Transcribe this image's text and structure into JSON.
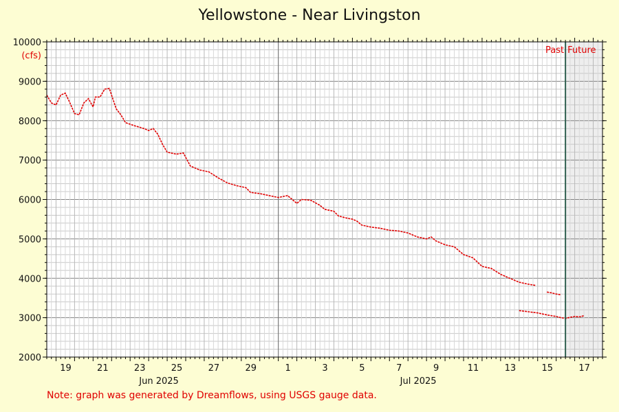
{
  "chart_data": {
    "type": "line",
    "title": "Yellowstone - Near Livingston",
    "ylabel": "(cfs)",
    "ylim": [
      2000,
      10000
    ],
    "yticks": [
      2000,
      3000,
      4000,
      5000,
      6000,
      7000,
      8000,
      9000,
      10000
    ],
    "xlim": [
      "2025-06-18T12:00",
      "2025-07-18T12:00"
    ],
    "x_tick_labels": [
      {
        "date": "2025-06-19",
        "label": "19"
      },
      {
        "date": "2025-06-21",
        "label": "21"
      },
      {
        "date": "2025-06-23",
        "label": "23"
      },
      {
        "date": "2025-06-25",
        "label": "25"
      },
      {
        "date": "2025-06-27",
        "label": "27"
      },
      {
        "date": "2025-06-29",
        "label": "29"
      },
      {
        "date": "2025-07-01",
        "label": "1"
      },
      {
        "date": "2025-07-03",
        "label": "3"
      },
      {
        "date": "2025-07-05",
        "label": "5"
      },
      {
        "date": "2025-07-07",
        "label": "7"
      },
      {
        "date": "2025-07-09",
        "label": "9"
      },
      {
        "date": "2025-07-11",
        "label": "11"
      },
      {
        "date": "2025-07-13",
        "label": "13"
      },
      {
        "date": "2025-07-15",
        "label": "15"
      },
      {
        "date": "2025-07-17",
        "label": "17"
      }
    ],
    "month_labels": [
      {
        "date": "2025-06-25",
        "label": "Jun 2025"
      },
      {
        "date": "2025-07-09",
        "label": "Jul 2025"
      }
    ],
    "now": "2025-07-16T12:00",
    "past_label": "Past",
    "future_label": "Future",
    "grid": true,
    "colors": {
      "line": "#e00000",
      "now_line": "#2e5e4e",
      "future_fill": "#eeeeee",
      "plot_bg": "#ffffff"
    },
    "series": [
      {
        "segments": [
          [
            [
              "2025-06-18T12:00",
              8650
            ],
            [
              "2025-06-18T18:00",
              8450
            ],
            [
              "2025-06-19T00:00",
              8400
            ],
            [
              "2025-06-19T06:00",
              8650
            ],
            [
              "2025-06-19T12:00",
              8700
            ],
            [
              "2025-06-19T18:00",
              8450
            ],
            [
              "2025-06-20T00:00",
              8180
            ],
            [
              "2025-06-20T06:00",
              8150
            ],
            [
              "2025-06-20T12:00",
              8450
            ],
            [
              "2025-06-20T18:00",
              8560
            ],
            [
              "2025-06-21T00:00",
              8350
            ],
            [
              "2025-06-21T03:00",
              8600
            ],
            [
              "2025-06-21T09:00",
              8600
            ],
            [
              "2025-06-21T15:00",
              8800
            ],
            [
              "2025-06-21T21:00",
              8820
            ],
            [
              "2025-06-22T06:00",
              8300
            ],
            [
              "2025-06-22T12:00",
              8150
            ],
            [
              "2025-06-22T18:00",
              7950
            ],
            [
              "2025-06-23T06:00",
              7870
            ],
            [
              "2025-06-23T18:00",
              7800
            ],
            [
              "2025-06-24T00:00",
              7750
            ],
            [
              "2025-06-24T06:00",
              7800
            ],
            [
              "2025-06-24T12:00",
              7650
            ],
            [
              "2025-06-24T18:00",
              7400
            ],
            [
              "2025-06-25T00:00",
              7200
            ],
            [
              "2025-06-25T12:00",
              7150
            ],
            [
              "2025-06-25T21:00",
              7180
            ],
            [
              "2025-06-26T06:00",
              6850
            ],
            [
              "2025-06-26T18:00",
              6750
            ],
            [
              "2025-06-27T06:00",
              6700
            ],
            [
              "2025-06-27T18:00",
              6550
            ],
            [
              "2025-06-28T06:00",
              6420
            ],
            [
              "2025-06-28T18:00",
              6350
            ],
            [
              "2025-06-29T06:00",
              6300
            ],
            [
              "2025-06-29T12:00",
              6180
            ],
            [
              "2025-06-30T00:00",
              6150
            ],
            [
              "2025-06-30T12:00",
              6100
            ],
            [
              "2025-07-01T00:00",
              6050
            ],
            [
              "2025-07-01T12:00",
              6100
            ],
            [
              "2025-07-01T18:00",
              6000
            ],
            [
              "2025-07-02T00:00",
              5900
            ],
            [
              "2025-07-02T06:00",
              6000
            ],
            [
              "2025-07-02T18:00",
              5980
            ],
            [
              "2025-07-03T06:00",
              5850
            ],
            [
              "2025-07-03T12:00",
              5750
            ],
            [
              "2025-07-04T00:00",
              5700
            ],
            [
              "2025-07-04T06:00",
              5580
            ],
            [
              "2025-07-04T18:00",
              5520
            ],
            [
              "2025-07-05T00:00",
              5500
            ],
            [
              "2025-07-05T06:00",
              5450
            ],
            [
              "2025-07-05T12:00",
              5350
            ],
            [
              "2025-07-06T00:00",
              5300
            ],
            [
              "2025-07-06T12:00",
              5270
            ],
            [
              "2025-07-07T00:00",
              5220
            ],
            [
              "2025-07-07T12:00",
              5200
            ],
            [
              "2025-07-08T00:00",
              5150
            ],
            [
              "2025-07-08T12:00",
              5050
            ],
            [
              "2025-07-09T00:00",
              5000
            ],
            [
              "2025-07-09T06:00",
              5050
            ],
            [
              "2025-07-09T12:00",
              4950
            ],
            [
              "2025-07-10T00:00",
              4850
            ],
            [
              "2025-07-10T12:00",
              4800
            ],
            [
              "2025-07-11T00:00",
              4600
            ],
            [
              "2025-07-11T12:00",
              4520
            ],
            [
              "2025-07-12T00:00",
              4300
            ],
            [
              "2025-07-12T12:00",
              4250
            ],
            [
              "2025-07-13T00:00",
              4100
            ],
            [
              "2025-07-13T12:00",
              4000
            ],
            [
              "2025-07-14T00:00",
              3900
            ],
            [
              "2025-07-14T12:00",
              3850
            ],
            [
              "2025-07-14T21:00",
              3820
            ]
          ],
          [
            [
              "2025-07-15T12:00",
              3650
            ],
            [
              "2025-07-15T18:00",
              3630
            ],
            [
              "2025-07-16T00:00",
              3600
            ],
            [
              "2025-07-16T06:00",
              3580
            ]
          ],
          [
            [
              "2025-07-14T00:00",
              3180
            ],
            [
              "2025-07-14T12:00",
              3150
            ],
            [
              "2025-07-15T00:00",
              3120
            ],
            [
              "2025-07-15T12:00",
              3070
            ],
            [
              "2025-07-16T00:00",
              3030
            ],
            [
              "2025-07-16T06:00",
              3000
            ],
            [
              "2025-07-16T12:00",
              2980
            ],
            [
              "2025-07-16T18:00",
              3010
            ],
            [
              "2025-07-17T00:00",
              3030
            ],
            [
              "2025-07-17T06:00",
              3020
            ],
            [
              "2025-07-17T12:00",
              3050
            ]
          ]
        ]
      }
    ]
  },
  "note": "Note: graph was generated by Dreamflows, using USGS gauge data."
}
